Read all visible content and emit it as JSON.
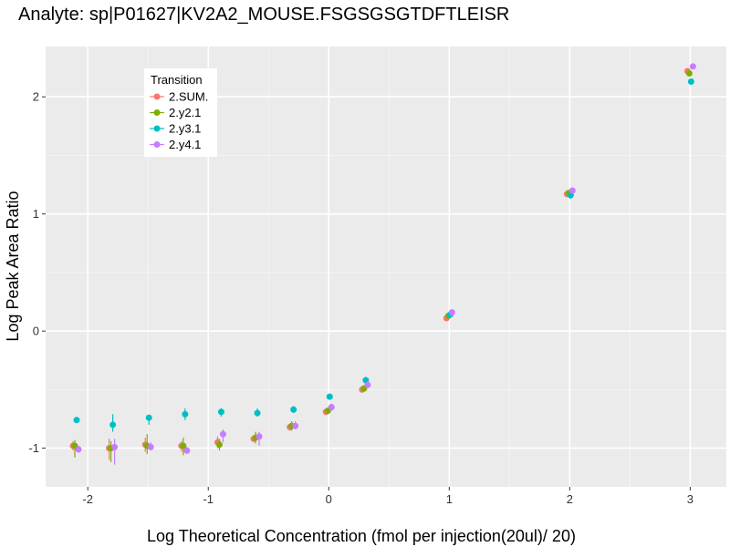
{
  "chart_data": {
    "type": "scatter",
    "title": "Analyte: sp|P01627|KV2A2_MOUSE.FSGSGSGTDFTLEISR",
    "xlabel": "Log Theoretical Concentration (fmol per injection(20ul)/ 20)",
    "ylabel": "Log Peak Area Ratio",
    "xlim": [
      -2.35,
      3.3
    ],
    "ylim": [
      -1.33,
      2.43
    ],
    "x_ticks": [
      -2,
      -1,
      0,
      1,
      2,
      3
    ],
    "y_ticks": [
      -1,
      0,
      1,
      2
    ],
    "x_tick_labels": [
      "-2",
      "-1",
      "0",
      "1",
      "2",
      "3"
    ],
    "y_tick_labels": [
      "-1",
      "0",
      "1",
      "2"
    ],
    "grid": true,
    "legend": {
      "title": "Transition",
      "position": "top-left"
    },
    "series": [
      {
        "name": "2.SUM.",
        "color": "#F8766D",
        "x": [
          -2.1,
          -1.8,
          -1.5,
          -1.2,
          -0.9,
          -0.6,
          -0.3,
          0.0,
          0.3,
          1.0,
          2.0,
          3.0
        ],
        "y": [
          -0.98,
          -1.0,
          -0.97,
          -0.98,
          -0.95,
          -0.92,
          -0.82,
          -0.69,
          -0.5,
          0.11,
          1.17,
          2.22
        ],
        "ylow": [
          -1.02,
          -1.1,
          -1.03,
          -1.03,
          -1.0,
          -0.95,
          -0.85,
          -0.71,
          -0.52,
          0.1,
          1.15,
          2.2
        ],
        "yhigh": [
          -0.94,
          -0.92,
          -0.91,
          -0.94,
          -0.9,
          -0.89,
          -0.79,
          -0.67,
          -0.48,
          0.13,
          1.19,
          2.24
        ]
      },
      {
        "name": "2.y2.1",
        "color": "#7CAE00",
        "x": [
          -2.1,
          -1.8,
          -1.5,
          -1.2,
          -0.9,
          -0.6,
          -0.3,
          0.0,
          0.3,
          1.0,
          2.0,
          3.0
        ],
        "y": [
          -0.98,
          -1.0,
          -0.98,
          -0.98,
          -0.97,
          -0.91,
          -0.81,
          -0.68,
          -0.49,
          0.13,
          1.18,
          2.2
        ],
        "ylow": [
          -1.08,
          -1.12,
          -1.05,
          -1.06,
          -1.02,
          -0.96,
          -0.85,
          -0.7,
          -0.51,
          0.12,
          1.16,
          2.18
        ],
        "yhigh": [
          -0.93,
          -0.94,
          -0.88,
          -0.91,
          -0.92,
          -0.86,
          -0.77,
          -0.66,
          -0.47,
          0.15,
          1.2,
          2.22
        ]
      },
      {
        "name": "2.y3.1",
        "color": "#00BFC4",
        "x": [
          -2.1,
          -1.8,
          -1.5,
          -1.2,
          -0.9,
          -0.6,
          -0.3,
          0.0,
          0.3,
          1.0,
          2.0,
          3.0
        ],
        "y": [
          -0.76,
          -0.8,
          -0.74,
          -0.71,
          -0.69,
          -0.7,
          -0.67,
          -0.56,
          -0.42,
          0.14,
          1.16,
          2.13
        ],
        "ylow": [
          -0.78,
          -0.86,
          -0.8,
          -0.76,
          -0.73,
          -0.73,
          -0.7,
          -0.58,
          -0.45,
          0.13,
          1.13,
          2.12
        ],
        "yhigh": [
          -0.74,
          -0.71,
          -0.72,
          -0.66,
          -0.66,
          -0.66,
          -0.64,
          -0.54,
          -0.39,
          0.15,
          1.18,
          2.14
        ]
      },
      {
        "name": "2.y4.1",
        "color": "#C77CFF",
        "x": [
          -2.1,
          -1.8,
          -1.5,
          -1.2,
          -0.9,
          -0.6,
          -0.3,
          0.0,
          0.3,
          1.0,
          2.0,
          3.0
        ],
        "y": [
          -1.01,
          -0.99,
          -0.99,
          -1.02,
          -0.88,
          -0.9,
          -0.81,
          -0.65,
          -0.46,
          0.16,
          1.2,
          2.26
        ],
        "ylow": [
          -1.04,
          -1.14,
          -1.02,
          -1.05,
          -0.95,
          -0.98,
          -0.84,
          -0.68,
          -0.48,
          0.15,
          1.18,
          2.25
        ],
        "yhigh": [
          -0.98,
          -0.92,
          -0.95,
          -0.99,
          -0.84,
          -0.86,
          -0.77,
          -0.62,
          -0.43,
          0.17,
          1.22,
          2.27
        ]
      }
    ]
  }
}
